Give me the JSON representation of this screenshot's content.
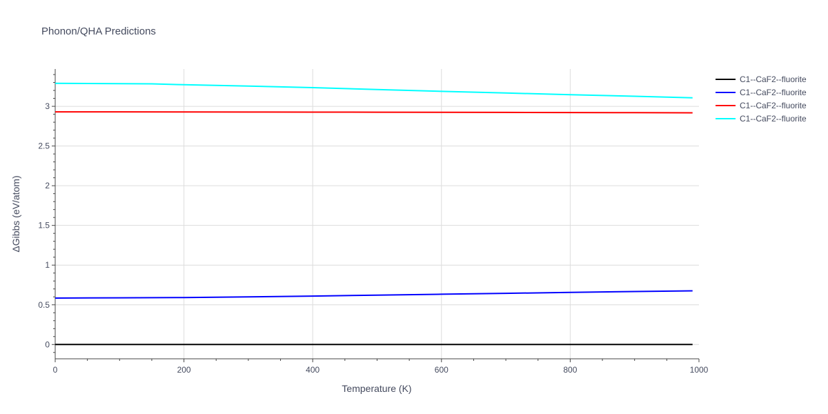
{
  "chart_data": {
    "type": "line",
    "title": "Phonon/QHA Predictions",
    "xlabel": "Temperature (K)",
    "ylabel": "ΔGibbs (eV/atom)",
    "xlim": [
      0,
      1000
    ],
    "ylim": [
      -0.18,
      3.47
    ],
    "x_ticks": [
      0,
      200,
      400,
      600,
      800,
      1000
    ],
    "x_tick_labels": [
      "0",
      "200",
      "400",
      "600",
      "800",
      "1000"
    ],
    "y_ticks": [
      0,
      0.5,
      1,
      1.5,
      2,
      2.5,
      3
    ],
    "y_tick_labels": [
      "0",
      "0.5",
      "1",
      "1.5",
      "2",
      "2.5",
      "3"
    ],
    "grid": true,
    "legend_position": "top-right",
    "series": [
      {
        "name": "C1--CaF2--fluorite",
        "color": "#000000",
        "x": [
          0,
          100,
          200,
          300,
          400,
          500,
          600,
          700,
          800,
          900,
          990
        ],
        "y": [
          0,
          0,
          0,
          0,
          0,
          0,
          0,
          0,
          0,
          0,
          0
        ]
      },
      {
        "name": "C1--CaF2--fluorite",
        "color": "#0000ff",
        "x": [
          0,
          100,
          200,
          300,
          400,
          500,
          600,
          700,
          800,
          900,
          990
        ],
        "y": [
          0.585,
          0.588,
          0.592,
          0.6,
          0.61,
          0.622,
          0.633,
          0.645,
          0.656,
          0.667,
          0.676
        ]
      },
      {
        "name": "C1--CaF2--fluorite",
        "color": "#ff0000",
        "x": [
          0,
          100,
          200,
          300,
          400,
          500,
          600,
          700,
          800,
          900,
          990
        ],
        "y": [
          2.93,
          2.93,
          2.929,
          2.928,
          2.927,
          2.926,
          2.925,
          2.923,
          2.922,
          2.92,
          2.918
        ]
      },
      {
        "name": "C1--CaF2--fluorite",
        "color": "#00ffff",
        "x": [
          0,
          100,
          150,
          200,
          300,
          400,
          500,
          600,
          700,
          800,
          900,
          990
        ],
        "y": [
          3.29,
          3.285,
          3.283,
          3.272,
          3.255,
          3.235,
          3.212,
          3.188,
          3.168,
          3.147,
          3.127,
          3.108
        ]
      }
    ]
  }
}
